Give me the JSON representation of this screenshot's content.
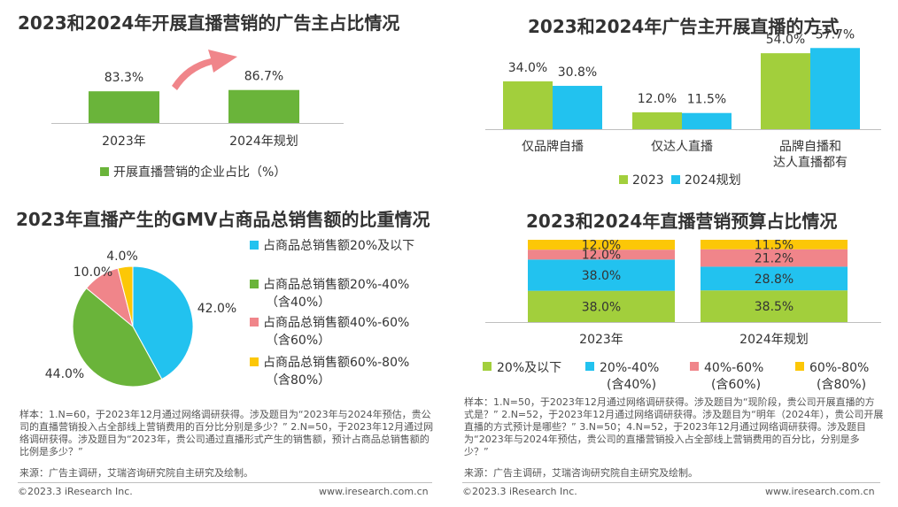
{
  "charts": {
    "c1": {
      "title": "2023和2024年开展直播营销的广告主占比情况",
      "type": "bar",
      "categories": [
        "2023年",
        "2024年规划"
      ],
      "values": [
        83.3,
        86.7
      ],
      "value_labels": [
        "83.3%",
        "86.7%"
      ],
      "legend": "开展直播营销的企业占比（%）",
      "color": "#6ab43a"
    },
    "c2": {
      "title": "2023和2024年广告主开展直播的方式",
      "type": "bar",
      "categories": [
        "仅品牌自播",
        "仅达人直播",
        "品牌自播和\n达人直播都有"
      ],
      "series": [
        {
          "name": "2023",
          "values": [
            34.0,
            12.0,
            54.0
          ],
          "labels": [
            "34.0%",
            "12.0%",
            "54.0%"
          ],
          "color": "#a2cf3c"
        },
        {
          "name": "2024规划",
          "values": [
            30.8,
            11.5,
            57.7
          ],
          "labels": [
            "30.8%",
            "11.5%",
            "57.7%"
          ],
          "color": "#22c2ef"
        }
      ]
    },
    "c3": {
      "title": "2023年直播产生的GMV占商品总销售额的比重情况",
      "type": "pie",
      "slices": [
        {
          "name": "占商品总销售额20%及以下",
          "value": 42.0,
          "label": "42.0%",
          "color": "#22c2ef"
        },
        {
          "name": "占商品总销售额20%-40%（含40%）",
          "value": 44.0,
          "label": "44.0%",
          "color": "#6ab43a"
        },
        {
          "name": "占商品总销售额40%-60%（含60%）",
          "value": 10.0,
          "label": "10.0%",
          "color": "#f0858a"
        },
        {
          "name": "占商品总销售额60%-80%（含80%）",
          "value": 4.0,
          "label": "4.0%",
          "color": "#fcc707"
        }
      ],
      "legend": [
        [
          "占商品总销售额20%及以下"
        ],
        [
          "占商品总销售额20%-40%",
          "（含40%）"
        ],
        [
          "占商品总销售额40%-60%",
          "（含60%）"
        ],
        [
          "占商品总销售额60%-80%",
          "（含80%）"
        ]
      ]
    },
    "c4": {
      "title": "2023和2024年直播营销预算占比情况",
      "type": "bar",
      "stacked": true,
      "categories": [
        "2023年",
        "2024年规划"
      ],
      "series": [
        {
          "name": "20%及以下",
          "values": [
            38.0,
            38.5
          ],
          "labels": [
            "38.0%",
            "38.5%"
          ],
          "color": "#a2cf3c"
        },
        {
          "name": "20%-40%（含40%）",
          "values": [
            38.0,
            28.8
          ],
          "labels": [
            "38.0%",
            "28.8%"
          ],
          "color": "#22c2ef"
        },
        {
          "name": "40%-60%（含60%）",
          "values": [
            12.0,
            21.2
          ],
          "labels": [
            "12.0%",
            "21.2%"
          ],
          "color": "#f0858a"
        },
        {
          "name": "60%-80%（含80%）",
          "values": [
            12.0,
            11.5
          ],
          "labels": [
            "12.0%",
            "11.5%"
          ],
          "color": "#fcc707"
        }
      ],
      "legend": [
        [
          "20%及以下"
        ],
        [
          "20%-40%",
          "(含40%)"
        ],
        [
          "40%-60%",
          "(含60%)"
        ],
        [
          "60%-80%",
          "(含80%)"
        ]
      ]
    }
  },
  "notes": {
    "left": "样本：1.N=60，于2023年12月通过网络调研获得。涉及题目为“2023年与2024年预估，贵公司的直播营销投入占全部线上营销费用的百分比分别是多少？”  2.N=50，于2023年12月通过网络调研获得。涉及题目为“2023年，贵公司通过直播形式产生的销售额，预计占商品总销售额的比例是多少？”",
    "left_source": "来源：广告主调研，艾瑞咨询研究院自主研究及绘制。",
    "right": "样本：1.N=50，于2023年12月通过网络调研获得。涉及题目为“现阶段，贵公司开展直播的方式是？”  2.N=52，于2023年12月通过网络调研获得。涉及题目为“明年（2024年），贵公司开展直播的方式预计是哪些？”  3.N=50；4.N=52，于2023年12月通过网络调研获得。涉及题目为“2023年与2024年预估，贵公司的直播营销投入占全部线上营销费用的百分比，分别是多少？”",
    "right_source": "来源：广告主调研，艾瑞咨询研究院自主研究及绘制。"
  },
  "footer": {
    "left_copy": "©2023.3 iResearch Inc.",
    "left_url": "www.iresearch.com.cn",
    "right_copy": "©2023.3 iResearch Inc.",
    "right_url": "www.iresearch.com.cn"
  }
}
